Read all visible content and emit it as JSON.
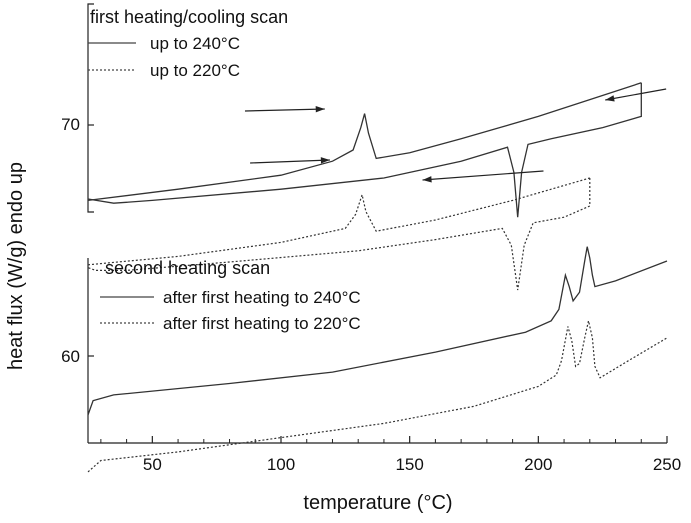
{
  "chart_data": [
    {
      "type": "line",
      "panel": "top",
      "title": "first heating/cooling scan",
      "ylabel": "heat flux (W/g) endo up",
      "ytick": "70",
      "series": [
        {
          "name": "up to 240°C",
          "style": "solid",
          "heating": [
            [
              25,
              67.2
            ],
            [
              60,
              67.6
            ],
            [
              100,
              68.1
            ],
            [
              120,
              68.6
            ],
            [
              128,
              69.0
            ],
            [
              131,
              69.8
            ],
            [
              132.5,
              70.3
            ],
            [
              134,
              69.6
            ],
            [
              137,
              68.7
            ],
            [
              150,
              68.9
            ],
            [
              170,
              69.4
            ],
            [
              200,
              70.2
            ],
            [
              220,
              70.8
            ],
            [
              240,
              71.4
            ]
          ],
          "cooling": [
            [
              240,
              71.4
            ],
            [
              240,
              70.2
            ],
            [
              225,
              69.8
            ],
            [
              205,
              69.4
            ],
            [
              196,
              69.2
            ],
            [
              193.5,
              68.2
            ],
            [
              192,
              66.6
            ],
            [
              190.5,
              68.2
            ],
            [
              188,
              69.1
            ],
            [
              170,
              68.6
            ],
            [
              140,
              68.0
            ],
            [
              100,
              67.6
            ],
            [
              50,
              67.2
            ],
            [
              35,
              67.1
            ],
            [
              25,
              67.25
            ]
          ]
        },
        {
          "name": "up to 220°C",
          "style": "dotted",
          "heating": [
            [
              25,
              64.9
            ],
            [
              60,
              65.2
            ],
            [
              100,
              65.7
            ],
            [
              125,
              66.2
            ],
            [
              129,
              66.7
            ],
            [
              131.5,
              67.4
            ],
            [
              133,
              66.8
            ],
            [
              137,
              66.1
            ],
            [
              160,
              66.5
            ],
            [
              190,
              67.2
            ],
            [
              205,
              67.6
            ],
            [
              220,
              68.0
            ]
          ],
          "cooling": [
            [
              220,
              68.0
            ],
            [
              220,
              67.0
            ],
            [
              210,
              66.6
            ],
            [
              198,
              66.4
            ],
            [
              194.5,
              65.6
            ],
            [
              192,
              64.0
            ],
            [
              189.5,
              65.6
            ],
            [
              186,
              66.2
            ],
            [
              160,
              65.8
            ],
            [
              130,
              65.4
            ],
            [
              80,
              65.0
            ],
            [
              40,
              64.7
            ],
            [
              28,
              64.7
            ],
            [
              25,
              64.8
            ]
          ]
        }
      ]
    },
    {
      "type": "line",
      "panel": "bottom",
      "title": "second heating scan",
      "ytick": "60",
      "xlabel": "temperature (°C)",
      "xlim": [
        25,
        250
      ],
      "xticks": [
        "50",
        "100",
        "150",
        "200",
        "250"
      ],
      "series": [
        {
          "name": "after first heating to 240°C",
          "style": "solid",
          "points": [
            [
              25,
              57.9
            ],
            [
              27,
              58.4
            ],
            [
              35,
              58.6
            ],
            [
              80,
              59.0
            ],
            [
              120,
              59.4
            ],
            [
              160,
              60.1
            ],
            [
              195,
              60.8
            ],
            [
              205,
              61.2
            ],
            [
              208,
              61.6
            ],
            [
              210.5,
              62.8
            ],
            [
              212,
              62.4
            ],
            [
              213.5,
              61.9
            ],
            [
              216,
              62.2
            ],
            [
              218,
              63.3
            ],
            [
              219,
              63.8
            ],
            [
              220,
              63.4
            ],
            [
              221,
              62.8
            ],
            [
              222,
              62.4
            ],
            [
              230,
              62.6
            ],
            [
              250,
              63.3
            ]
          ]
        },
        {
          "name": "after first heating to 220°C",
          "style": "dotted",
          "points": [
            [
              25,
              55.9
            ],
            [
              30,
              56.3
            ],
            [
              60,
              56.6
            ],
            [
              100,
              57.1
            ],
            [
              140,
              57.6
            ],
            [
              175,
              58.2
            ],
            [
              200,
              58.9
            ],
            [
              207,
              59.3
            ],
            [
              209,
              59.8
            ],
            [
              211.5,
              61.0
            ],
            [
              213,
              60.5
            ],
            [
              214.5,
              59.6
            ],
            [
              216,
              59.7
            ],
            [
              218,
              60.6
            ],
            [
              219.5,
              61.2
            ],
            [
              221,
              60.6
            ],
            [
              222,
              59.6
            ],
            [
              224,
              59.2
            ],
            [
              235,
              59.8
            ],
            [
              250,
              60.6
            ]
          ]
        }
      ]
    }
  ]
}
